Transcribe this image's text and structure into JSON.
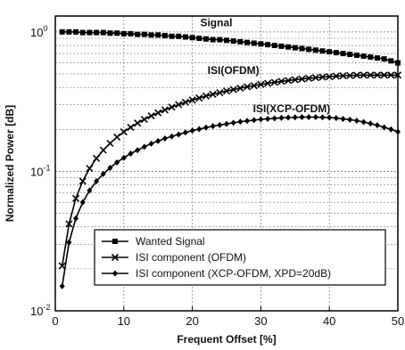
{
  "chart_data": {
    "type": "line",
    "title": "",
    "xlabel": "Frequent Offset [%]",
    "ylabel": "Normalized Power [dB]",
    "xlim": [
      0,
      50
    ],
    "ylim": [
      0.01,
      1.3
    ],
    "yscale": "log",
    "grid": true,
    "x_ticks": [
      0,
      10,
      20,
      30,
      40,
      50
    ],
    "y_tick_labels": [
      {
        "value": 1,
        "base": "10",
        "exp": "0"
      },
      {
        "value": 0.1,
        "base": "10",
        "exp": "-1"
      },
      {
        "value": 0.01,
        "base": "10",
        "exp": "-2"
      }
    ],
    "legend_position": "bottom-right",
    "series": [
      {
        "name": "Wanted Signal",
        "marker": "square",
        "x": [
          1,
          2,
          3,
          4,
          5,
          6,
          7,
          8,
          9,
          10,
          11,
          12,
          13,
          14,
          15,
          16,
          17,
          18,
          19,
          20,
          21,
          22,
          23,
          24,
          25,
          26,
          27,
          28,
          29,
          30,
          31,
          32,
          33,
          34,
          35,
          36,
          37,
          38,
          39,
          40,
          41,
          42,
          43,
          44,
          45,
          46,
          47,
          48,
          49,
          50
        ],
        "y": [
          1.0,
          1.0,
          1.0,
          0.99,
          0.99,
          0.99,
          0.99,
          0.98,
          0.98,
          0.97,
          0.97,
          0.96,
          0.96,
          0.95,
          0.95,
          0.94,
          0.93,
          0.93,
          0.92,
          0.91,
          0.9,
          0.89,
          0.88,
          0.88,
          0.87,
          0.86,
          0.85,
          0.84,
          0.83,
          0.82,
          0.81,
          0.8,
          0.79,
          0.78,
          0.77,
          0.76,
          0.75,
          0.74,
          0.73,
          0.72,
          0.71,
          0.7,
          0.69,
          0.68,
          0.67,
          0.66,
          0.65,
          0.64,
          0.62,
          0.6
        ]
      },
      {
        "name": "ISI component (OFDM)",
        "marker": "x",
        "x": [
          1,
          2,
          3,
          4,
          5,
          6,
          7,
          8,
          9,
          10,
          11,
          12,
          13,
          14,
          15,
          16,
          17,
          18,
          19,
          20,
          21,
          22,
          23,
          24,
          25,
          26,
          27,
          28,
          29,
          30,
          31,
          32,
          33,
          34,
          35,
          36,
          37,
          38,
          39,
          40,
          41,
          42,
          43,
          44,
          45,
          46,
          47,
          48,
          49,
          50
        ],
        "y": [
          0.021,
          0.042,
          0.064,
          0.085,
          0.105,
          0.124,
          0.142,
          0.159,
          0.176,
          0.192,
          0.207,
          0.222,
          0.236,
          0.25,
          0.263,
          0.276,
          0.289,
          0.301,
          0.313,
          0.325,
          0.336,
          0.347,
          0.357,
          0.367,
          0.377,
          0.386,
          0.395,
          0.404,
          0.412,
          0.42,
          0.428,
          0.435,
          0.442,
          0.448,
          0.454,
          0.46,
          0.465,
          0.47,
          0.474,
          0.478,
          0.482,
          0.485,
          0.487,
          0.489,
          0.49,
          0.49,
          0.49,
          0.49,
          0.49,
          0.49
        ]
      },
      {
        "name": "ISI component (XCP-OFDM, XPD=20dB)",
        "marker": "diamond",
        "x": [
          1,
          2,
          3,
          4,
          5,
          6,
          7,
          8,
          9,
          10,
          11,
          12,
          13,
          14,
          15,
          16,
          17,
          18,
          19,
          20,
          21,
          22,
          23,
          24,
          25,
          26,
          27,
          28,
          29,
          30,
          31,
          32,
          33,
          34,
          35,
          36,
          37,
          38,
          39,
          40,
          41,
          42,
          43,
          44,
          45,
          46,
          47,
          48,
          49,
          50
        ],
        "y": [
          0.015,
          0.031,
          0.046,
          0.06,
          0.073,
          0.085,
          0.096,
          0.106,
          0.116,
          0.125,
          0.134,
          0.142,
          0.15,
          0.158,
          0.165,
          0.172,
          0.178,
          0.184,
          0.19,
          0.196,
          0.201,
          0.206,
          0.211,
          0.215,
          0.219,
          0.223,
          0.227,
          0.23,
          0.233,
          0.236,
          0.238,
          0.24,
          0.242,
          0.243,
          0.244,
          0.245,
          0.245,
          0.245,
          0.244,
          0.243,
          0.241,
          0.238,
          0.235,
          0.231,
          0.226,
          0.22,
          0.214,
          0.207,
          0.2,
          0.192
        ]
      }
    ],
    "annotations": [
      {
        "text": "Signal",
        "x": 23.5,
        "y": 1.1
      },
      {
        "text": "ISI(OFDM)",
        "x": 26,
        "y": 0.5
      },
      {
        "text": "ISI(XCP-OFDM)",
        "x": 34.5,
        "y": 0.265
      }
    ]
  }
}
